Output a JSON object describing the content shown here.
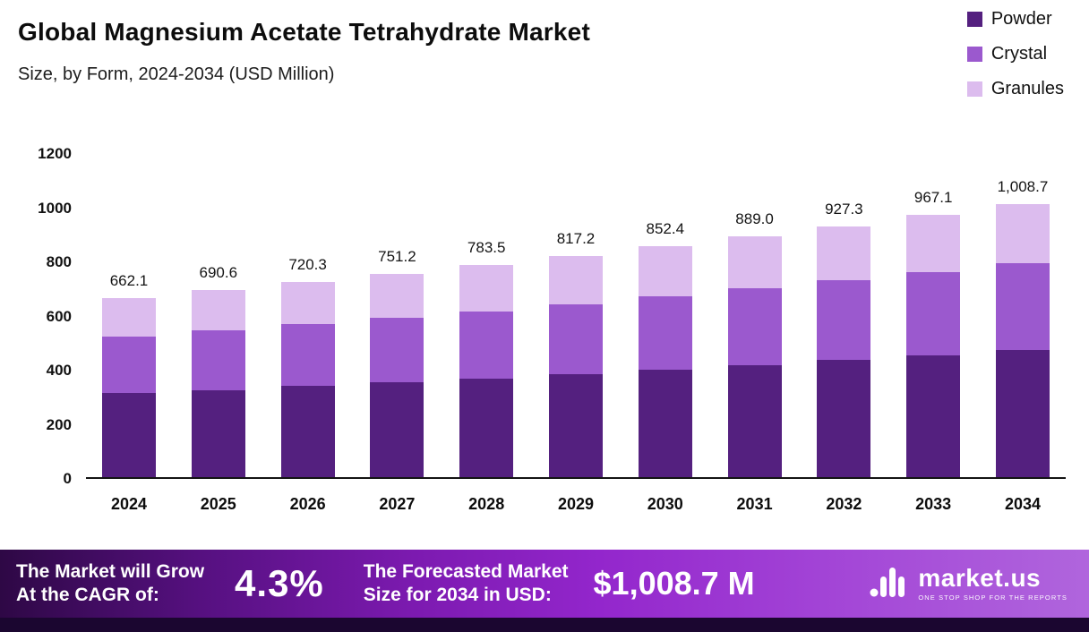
{
  "header": {
    "title": "Global Magnesium Acetate Tetrahydrate Market",
    "subtitle": "Size, by Form, 2024-2034 (USD Million)"
  },
  "chart_data": {
    "type": "bar",
    "stacked": true,
    "title": "Global Magnesium Acetate Tetrahydrate Market",
    "subtitle": "Size, by Form, 2024-2034 (USD Million)",
    "categories": [
      "2024",
      "2025",
      "2026",
      "2027",
      "2028",
      "2029",
      "2030",
      "2031",
      "2032",
      "2033",
      "2034"
    ],
    "series": [
      {
        "name": "Powder",
        "color": "#54207f",
        "values": [
          310.0,
          322.0,
          336.0,
          350.0,
          365.0,
          381.0,
          397.0,
          414.0,
          432.0,
          450.5,
          470.0
        ]
      },
      {
        "name": "Crystal",
        "color": "#9b59ce",
        "values": [
          210.0,
          219.0,
          228.0,
          238.0,
          248.0,
          258.5,
          270.0,
          282.0,
          294.0,
          306.5,
          320.0
        ]
      },
      {
        "name": "Granules",
        "color": "#dcbcee",
        "values": [
          142.1,
          149.6,
          156.3,
          163.2,
          170.5,
          177.7,
          185.4,
          193.0,
          201.3,
          210.1,
          218.7
        ]
      }
    ],
    "totals": [
      662.1,
      690.6,
      720.3,
      751.2,
      783.5,
      817.2,
      852.4,
      889.0,
      927.3,
      967.1,
      1008.7
    ],
    "total_labels": [
      "662.1",
      "690.6",
      "720.3",
      "751.2",
      "783.5",
      "817.2",
      "852.4",
      "889.0",
      "927.3",
      "967.1",
      "1,008.7"
    ],
    "ylim": [
      0,
      1200
    ],
    "yticks": [
      0,
      200,
      400,
      600,
      800,
      1000,
      1200
    ],
    "grid": false,
    "legend_position": "top-right",
    "xlabel": "",
    "ylabel": ""
  },
  "footer": {
    "grow_label": "The Market will Grow\nAt the CAGR of:",
    "cagr_value": "4.3%",
    "forecast_label": "The Forecasted Market\nSize for 2034 in USD:",
    "forecast_value": "$1,008.7 M",
    "brand": "market.us",
    "tagline": "ONE STOP SHOP FOR THE REPORTS"
  }
}
